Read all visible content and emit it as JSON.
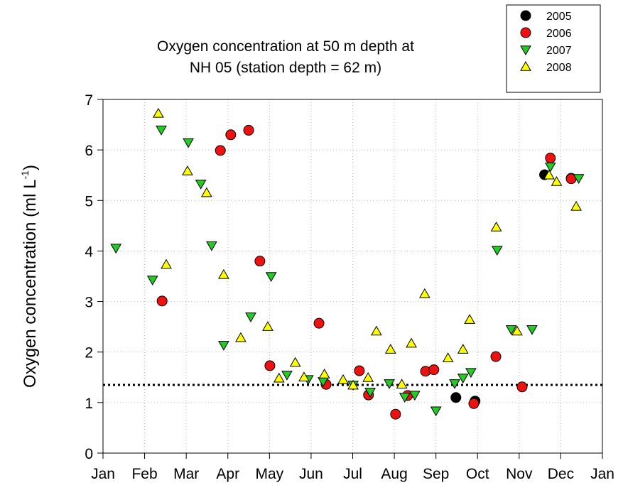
{
  "chart_data": {
    "type": "scatter",
    "title": [
      "Oxygen concentration at 50 m depth at",
      "NH 05 (station depth = 62 m)"
    ],
    "y_label": {
      "main": "Oxygen concentration (ml L",
      "sup1": "-1",
      "end": ")"
    },
    "xlim": [
      0,
      12
    ],
    "ylim": [
      0,
      7
    ],
    "xticks": [
      {
        "value": 0,
        "label": "Jan"
      },
      {
        "value": 1,
        "label": "Feb"
      },
      {
        "value": 2,
        "label": "Mar"
      },
      {
        "value": 3,
        "label": "Apr"
      },
      {
        "value": 4,
        "label": "May"
      },
      {
        "value": 5,
        "label": "Jun"
      },
      {
        "value": 6,
        "label": "Jul"
      },
      {
        "value": 7,
        "label": "Aug"
      },
      {
        "value": 8,
        "label": "Sep"
      },
      {
        "value": 9,
        "label": "Oct"
      },
      {
        "value": 10,
        "label": "Nov"
      },
      {
        "value": 11,
        "label": "Dec"
      },
      {
        "value": 12,
        "label": "Jan"
      }
    ],
    "yticks": [
      0,
      1,
      2,
      3,
      4,
      5,
      6,
      7
    ],
    "grid": true,
    "hline": 1.35,
    "series": [
      {
        "name": "2005",
        "color": "#000000",
        "marker": "circle",
        "x": [
          10.61,
          8.48,
          8.94,
          11.25
        ],
        "values": [
          5.51,
          1.1,
          1.03,
          5.44
        ]
      },
      {
        "name": "2006",
        "color": "#ee1111",
        "marker": "circle",
        "x": [
          1.42,
          2.82,
          3.07,
          3.5,
          3.77,
          4.01,
          5.19,
          5.36,
          6.16,
          6.38,
          7.03,
          7.32,
          7.75,
          7.95,
          8.91,
          9.44,
          10.07,
          10.75,
          11.25
        ],
        "values": [
          3.01,
          5.99,
          6.3,
          6.39,
          3.8,
          1.73,
          2.57,
          1.36,
          1.63,
          1.15,
          0.77,
          1.14,
          1.62,
          1.65,
          0.98,
          1.91,
          1.31,
          5.84,
          5.43
        ]
      },
      {
        "name": "2007",
        "color": "#22cc22",
        "marker": "down",
        "x": [
          0.31,
          1.19,
          1.4,
          2.05,
          2.35,
          2.61,
          2.9,
          3.55,
          4.04,
          4.42,
          4.93,
          5.29,
          6.01,
          6.42,
          6.88,
          7.25,
          7.49,
          8.0,
          8.45,
          8.65,
          8.84,
          9.47,
          9.81,
          10.31,
          10.75,
          11.43
        ],
        "values": [
          4.06,
          3.43,
          6.4,
          6.15,
          5.33,
          4.11,
          2.14,
          2.7,
          3.5,
          1.55,
          1.46,
          1.42,
          1.35,
          1.21,
          1.38,
          1.11,
          1.15,
          0.84,
          1.38,
          1.49,
          1.6,
          4.02,
          2.45,
          2.45,
          5.67,
          5.44
        ]
      },
      {
        "name": "2008",
        "color": "#ffff00",
        "marker": "up",
        "x": [
          1.33,
          1.52,
          2.03,
          2.49,
          2.9,
          3.31,
          3.96,
          4.23,
          4.62,
          4.83,
          5.32,
          5.77,
          6.01,
          6.37,
          6.57,
          6.91,
          7.18,
          7.41,
          7.73,
          8.29,
          8.65,
          8.81,
          9.45,
          9.95,
          10.72,
          10.9,
          11.37
        ],
        "values": [
          6.72,
          3.73,
          5.58,
          5.15,
          3.53,
          2.28,
          2.5,
          1.48,
          1.79,
          1.5,
          1.56,
          1.45,
          1.34,
          1.49,
          2.41,
          2.05,
          1.36,
          2.17,
          3.15,
          1.88,
          2.05,
          2.64,
          4.47,
          2.41,
          5.5,
          5.37,
          4.88
        ]
      }
    ]
  }
}
